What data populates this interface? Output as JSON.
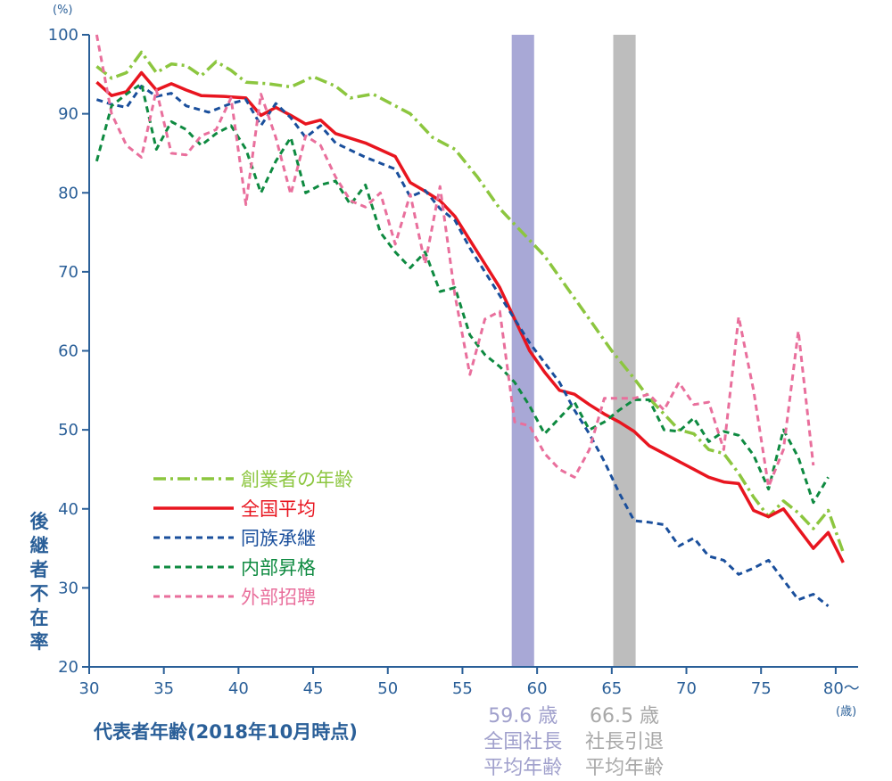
{
  "chart_data": {
    "type": "line",
    "xlabel": "代表者年齢(2018年10月時点)",
    "ylabel": "後継者不在率",
    "y_unit": "(%)",
    "x_unit": "(歳)",
    "xlim": [
      30,
      81.5
    ],
    "ylim": [
      20,
      100
    ],
    "xticks": [
      "30",
      "35",
      "40",
      "45",
      "50",
      "55",
      "60",
      "65",
      "70",
      "75",
      "80～"
    ],
    "yticks": [
      "20",
      "30",
      "40",
      "50",
      "60",
      "70",
      "80",
      "90",
      "100"
    ],
    "legend_position": "left-middle",
    "grid": false,
    "colors": {
      "axis": "#2a5f98",
      "band_president": "#a8a8d6",
      "band_retire": "#bdbdbd",
      "band_label_president": "#a0a0cc",
      "band_label_retire": "#a8a8a8"
    },
    "bands": [
      {
        "from": 58.3,
        "to": 59.8,
        "value_label": "59.6 歳",
        "text1": "全国社長",
        "text2": "平均年齢",
        "color": "#a8a8d6",
        "label_color": "#a0a0cc"
      },
      {
        "from": 65.1,
        "to": 66.6,
        "value_label": "66.5 歳",
        "text1": "社長引退",
        "text2": "平均年齢",
        "color": "#bdbdbd",
        "label_color": "#a8a8a8"
      }
    ],
    "series": [
      {
        "name": "創業者の年齢",
        "color": "#8cc63f",
        "dash": "14 5 3 5",
        "width": 3.5,
        "points": [
          [
            30.5,
            96
          ],
          [
            31.5,
            94.5
          ],
          [
            32.5,
            95.2
          ],
          [
            33.5,
            97.8
          ],
          [
            34.5,
            95.2
          ],
          [
            35.5,
            96.3
          ],
          [
            36.5,
            96.1
          ],
          [
            37.5,
            94.8
          ],
          [
            38.5,
            96.6
          ],
          [
            39.5,
            95.5
          ],
          [
            40.5,
            94
          ],
          [
            42,
            93.8
          ],
          [
            43.5,
            93.4
          ],
          [
            45,
            94.7
          ],
          [
            46.5,
            93.5
          ],
          [
            47.5,
            92
          ],
          [
            49,
            92.5
          ],
          [
            50,
            91.5
          ],
          [
            51.5,
            90
          ],
          [
            53,
            87
          ],
          [
            54.5,
            85.5
          ],
          [
            56,
            82
          ],
          [
            57.5,
            78
          ],
          [
            59,
            75
          ],
          [
            60.5,
            72
          ],
          [
            62,
            68
          ],
          [
            63.5,
            64
          ],
          [
            65,
            60
          ],
          [
            66.5,
            56.5
          ],
          [
            67.5,
            54
          ],
          [
            68.5,
            52
          ],
          [
            69.5,
            50
          ],
          [
            70.5,
            49.5
          ],
          [
            71.5,
            47.5
          ],
          [
            72.5,
            47
          ],
          [
            73.5,
            44.5
          ],
          [
            74.5,
            41.5
          ],
          [
            75.5,
            39
          ],
          [
            76.5,
            41
          ],
          [
            77.5,
            39.5
          ],
          [
            78.5,
            37.5
          ],
          [
            79.5,
            39.8
          ],
          [
            80.5,
            34.5
          ]
        ]
      },
      {
        "name": "全国平均",
        "color": "#e8151f",
        "dash": "",
        "width": 3.5,
        "points": [
          [
            30.5,
            94
          ],
          [
            31.5,
            92.3
          ],
          [
            32.5,
            92.8
          ],
          [
            33.5,
            95.2
          ],
          [
            34.5,
            93
          ],
          [
            35.5,
            93.8
          ],
          [
            36.5,
            93
          ],
          [
            37.5,
            92.3
          ],
          [
            39,
            92.2
          ],
          [
            40.5,
            92
          ],
          [
            41.5,
            89.8
          ],
          [
            42.5,
            90.8
          ],
          [
            43.5,
            89.8
          ],
          [
            44.5,
            88.7
          ],
          [
            45.5,
            89.2
          ],
          [
            46.5,
            87.5
          ],
          [
            48.5,
            86.3
          ],
          [
            50.5,
            84.6
          ],
          [
            51.5,
            81.3
          ],
          [
            52.5,
            80.2
          ],
          [
            53.5,
            79
          ],
          [
            54.5,
            77
          ],
          [
            55.5,
            74
          ],
          [
            56.5,
            71
          ],
          [
            57.5,
            68
          ],
          [
            58.5,
            64
          ],
          [
            59.5,
            60
          ],
          [
            60.5,
            57.3
          ],
          [
            61.5,
            55
          ],
          [
            62.5,
            54.5
          ],
          [
            63.5,
            53.2
          ],
          [
            64.5,
            52
          ],
          [
            65.5,
            51
          ],
          [
            66.5,
            49.8
          ],
          [
            67.5,
            48
          ],
          [
            68.5,
            47
          ],
          [
            69.5,
            46
          ],
          [
            70.5,
            45
          ],
          [
            71.5,
            44
          ],
          [
            72.5,
            43.4
          ],
          [
            73.5,
            43.2
          ],
          [
            74.5,
            39.8
          ],
          [
            75.5,
            39
          ],
          [
            76.5,
            40
          ],
          [
            77.5,
            37.5
          ],
          [
            78.5,
            35
          ],
          [
            79.5,
            37
          ],
          [
            80.5,
            33.2
          ]
        ]
      },
      {
        "name": "同族承継",
        "color": "#1a4f9c",
        "dash": "7 5",
        "width": 3,
        "points": [
          [
            30.5,
            91.8
          ],
          [
            31.5,
            91.2
          ],
          [
            32.5,
            90.8
          ],
          [
            33.5,
            93.5
          ],
          [
            34.5,
            92.2
          ],
          [
            35.5,
            92.6
          ],
          [
            36.5,
            91
          ],
          [
            38,
            90.2
          ],
          [
            39.5,
            91.3
          ],
          [
            40.5,
            91.8
          ],
          [
            41.5,
            88.5
          ],
          [
            42.5,
            91.3
          ],
          [
            43.5,
            89.5
          ],
          [
            44.5,
            87
          ],
          [
            45.5,
            88.5
          ],
          [
            46.5,
            86.3
          ],
          [
            48.5,
            84.5
          ],
          [
            50.5,
            83
          ],
          [
            51.5,
            79.5
          ],
          [
            52.5,
            80.3
          ],
          [
            53.5,
            78
          ],
          [
            54.5,
            76.5
          ],
          [
            55.5,
            73
          ],
          [
            56.5,
            70
          ],
          [
            57.5,
            67
          ],
          [
            58.5,
            64
          ],
          [
            59.5,
            61
          ],
          [
            60.5,
            58.5
          ],
          [
            61.5,
            56
          ],
          [
            62.5,
            52.5
          ],
          [
            63.5,
            49.5
          ],
          [
            64.5,
            46
          ],
          [
            65.5,
            42
          ],
          [
            66.5,
            38.5
          ],
          [
            67.5,
            38.3
          ],
          [
            68.5,
            38
          ],
          [
            69.5,
            35.3
          ],
          [
            70.5,
            36.3
          ],
          [
            71.5,
            34
          ],
          [
            72.5,
            33.5
          ],
          [
            73.5,
            31.7
          ],
          [
            74.5,
            32.5
          ],
          [
            75.5,
            33.5
          ],
          [
            76.5,
            31
          ],
          [
            77.5,
            28.5
          ],
          [
            78.5,
            29.2
          ],
          [
            79.5,
            27.7
          ]
        ]
      },
      {
        "name": "内部昇格",
        "color": "#0e8a40",
        "dash": "7 5",
        "width": 3,
        "points": [
          [
            30.5,
            84
          ],
          [
            31.5,
            91
          ],
          [
            32.5,
            92.5
          ],
          [
            33.5,
            93.8
          ],
          [
            34.5,
            85.5
          ],
          [
            35.5,
            89
          ],
          [
            36.5,
            88
          ],
          [
            37.5,
            86
          ],
          [
            38.5,
            87.5
          ],
          [
            39.5,
            88.5
          ],
          [
            40.5,
            85.5
          ],
          [
            41.5,
            80
          ],
          [
            42.5,
            84
          ],
          [
            43.5,
            87
          ],
          [
            44.5,
            80
          ],
          [
            45.5,
            81
          ],
          [
            46.5,
            81.5
          ],
          [
            47.5,
            78.5
          ],
          [
            48.5,
            81
          ],
          [
            49.5,
            75
          ],
          [
            50.5,
            72.5
          ],
          [
            51.5,
            70.5
          ],
          [
            52.5,
            72.5
          ],
          [
            53.5,
            67.5
          ],
          [
            54.5,
            68
          ],
          [
            55.5,
            62
          ],
          [
            56.5,
            59.5
          ],
          [
            57.5,
            58
          ],
          [
            58.5,
            56
          ],
          [
            59.5,
            53
          ],
          [
            60.5,
            49.5
          ],
          [
            61.5,
            51.5
          ],
          [
            62.5,
            53.5
          ],
          [
            63.5,
            50
          ],
          [
            64.5,
            51
          ],
          [
            65.5,
            52.5
          ],
          [
            66.5,
            53.8
          ],
          [
            67.5,
            53.8
          ],
          [
            68.5,
            50
          ],
          [
            69.5,
            49.8
          ],
          [
            70.5,
            51.5
          ],
          [
            71.5,
            48.5
          ],
          [
            72.5,
            49.8
          ],
          [
            73.5,
            49.3
          ],
          [
            74.5,
            46.8
          ],
          [
            75.5,
            42.5
          ],
          [
            76.5,
            50
          ],
          [
            77.5,
            46.5
          ],
          [
            78.5,
            40.8
          ],
          [
            79.5,
            44
          ]
        ]
      },
      {
        "name": "外部招聘",
        "color": "#e96f9c",
        "dash": "7 5",
        "width": 3,
        "points": [
          [
            30.5,
            100
          ],
          [
            31.5,
            90
          ],
          [
            32.5,
            86
          ],
          [
            33.5,
            84.5
          ],
          [
            34.5,
            93
          ],
          [
            35.5,
            85
          ],
          [
            36.5,
            84.8
          ],
          [
            37.5,
            87.2
          ],
          [
            38.5,
            88
          ],
          [
            39.5,
            92
          ],
          [
            40.5,
            78.5
          ],
          [
            41.5,
            92.5
          ],
          [
            42.5,
            87
          ],
          [
            43.5,
            79.8
          ],
          [
            44.5,
            87.2
          ],
          [
            45.5,
            86
          ],
          [
            46.5,
            82
          ],
          [
            47.5,
            79
          ],
          [
            48.5,
            78.2
          ],
          [
            49.5,
            80
          ],
          [
            50.5,
            73.5
          ],
          [
            51.5,
            79.8
          ],
          [
            52.5,
            71
          ],
          [
            53.5,
            80.8
          ],
          [
            54.5,
            67
          ],
          [
            55.5,
            57
          ],
          [
            56.5,
            64
          ],
          [
            57.5,
            65
          ],
          [
            58.5,
            51
          ],
          [
            59.5,
            50.5
          ],
          [
            60.5,
            47
          ],
          [
            61.5,
            45
          ],
          [
            62.5,
            44
          ],
          [
            63.5,
            47.5
          ],
          [
            64.5,
            54
          ],
          [
            65.5,
            54
          ],
          [
            66.5,
            54
          ],
          [
            67.5,
            54.5
          ],
          [
            68.5,
            52.5
          ],
          [
            69.5,
            56
          ],
          [
            70.5,
            53.2
          ],
          [
            71.5,
            53.5
          ],
          [
            72.5,
            47.5
          ],
          [
            73.5,
            64.3
          ],
          [
            74.5,
            55
          ],
          [
            75.5,
            42.8
          ],
          [
            76.5,
            47.5
          ],
          [
            77.5,
            62.5
          ],
          [
            78.5,
            45.5
          ]
        ]
      }
    ]
  }
}
